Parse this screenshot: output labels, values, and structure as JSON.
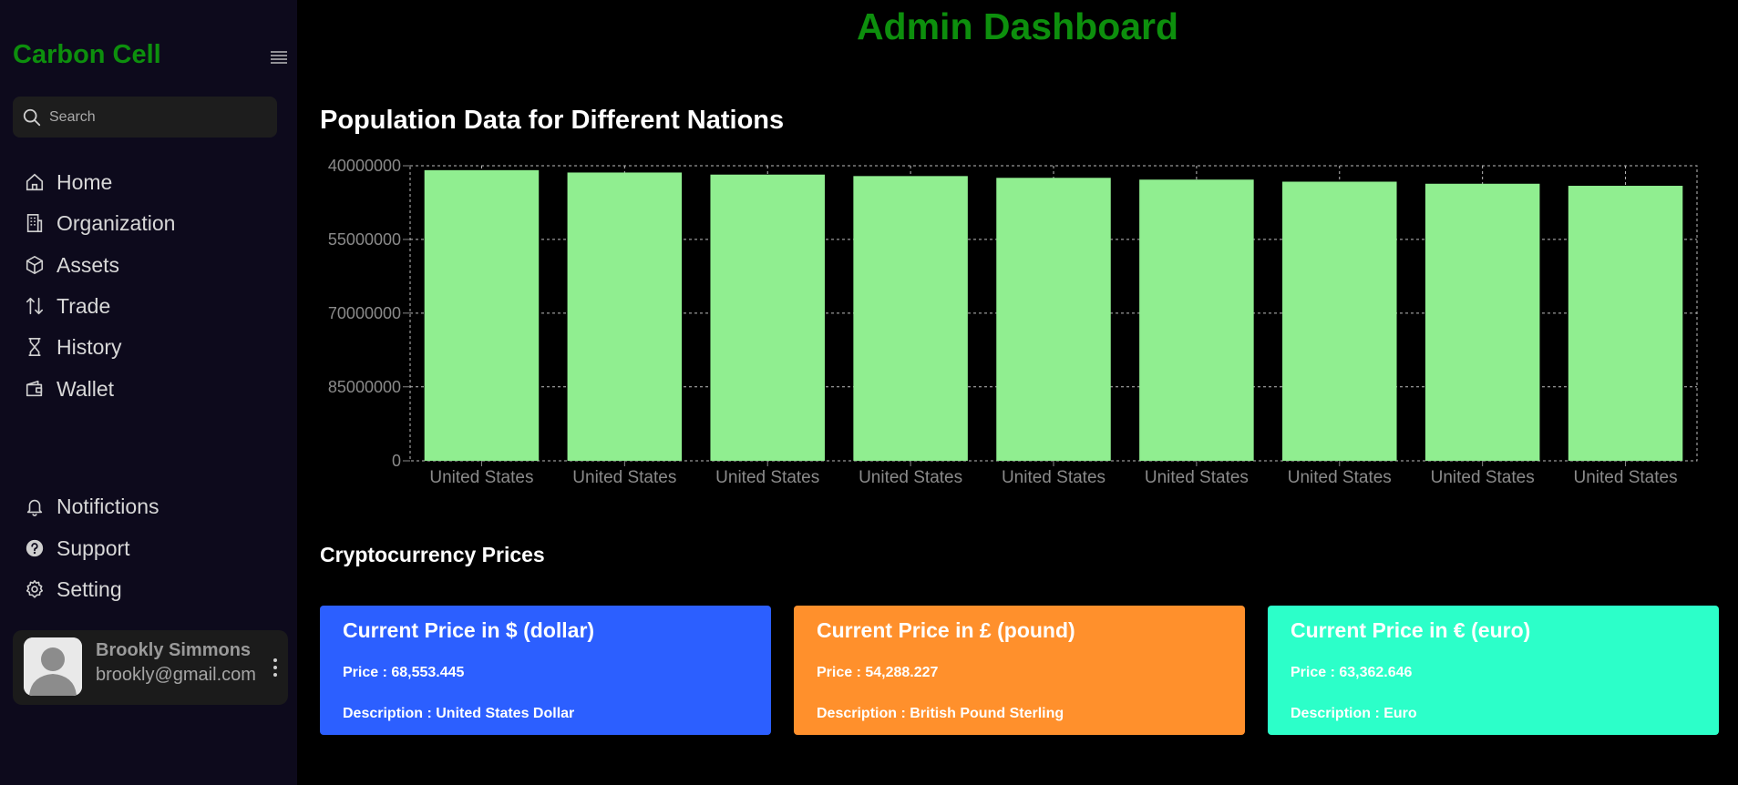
{
  "app": {
    "brand": "Carbon Cell",
    "page_title": "Admin Dashboard"
  },
  "search": {
    "placeholder": "Search"
  },
  "nav": {
    "items": [
      {
        "label": "Home",
        "icon": "home-icon"
      },
      {
        "label": "Organization",
        "icon": "building-icon"
      },
      {
        "label": "Assets",
        "icon": "cube-icon"
      },
      {
        "label": "Trade",
        "icon": "arrows-up-down-icon"
      },
      {
        "label": "History",
        "icon": "hourglass-icon"
      },
      {
        "label": "Wallet",
        "icon": "wallet-icon"
      }
    ],
    "bottom_items": [
      {
        "label": "Notifictions",
        "icon": "bell-icon"
      },
      {
        "label": "Support",
        "icon": "help-circle-icon"
      },
      {
        "label": "Setting",
        "icon": "gear-icon"
      }
    ]
  },
  "profile": {
    "name": "Brookly Simmons",
    "email": "brookly@gmail.com"
  },
  "chart_data": {
    "type": "bar",
    "title": "Population Data for Different Nations",
    "categories": [
      "United States",
      "United States",
      "United States",
      "United States",
      "United States",
      "United States",
      "United States",
      "United States",
      "United States"
    ],
    "y_ticks": [
      "40000000",
      "55000000",
      "70000000",
      "85000000",
      "0"
    ],
    "bar_color": "#90ee90",
    "grid": true,
    "values_fraction_of_axis": [
      0.985,
      0.977,
      0.97,
      0.965,
      0.959,
      0.953,
      0.946,
      0.939,
      0.932
    ]
  },
  "crypto": {
    "title": "Cryptocurrency Prices",
    "cards": [
      {
        "title": "Current Price in $ (dollar)",
        "price": "Price : 68,553.445",
        "description": "Description : United States Dollar",
        "color": "#2c5fff"
      },
      {
        "title": "Current Price in £ (pound)",
        "price": "Price : 54,288.227",
        "description": "Description : British Pound Sterling",
        "color": "#ff902c"
      },
      {
        "title": "Current Price in € (euro)",
        "price": "Price : 63,362.646",
        "description": "Description : Euro",
        "color": "#2cffc9"
      }
    ]
  },
  "colors": {
    "accent": "#0d8f0d",
    "sidebar_bg": "#0d0a1c"
  }
}
